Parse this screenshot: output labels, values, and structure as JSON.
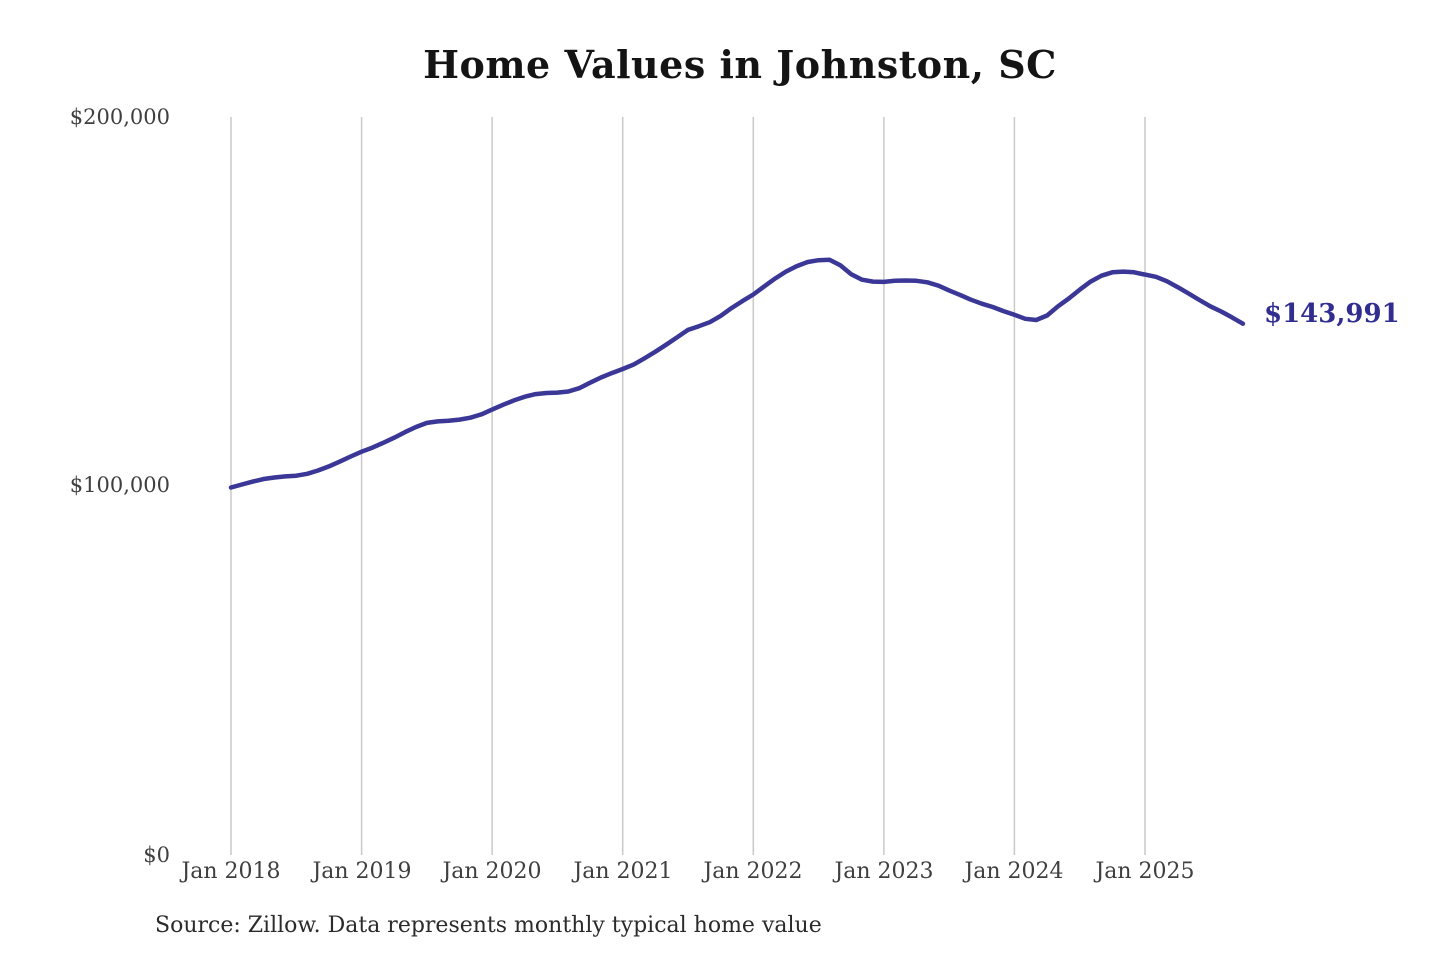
{
  "title": "Home Values in Johnston, SC",
  "source_note": "Source: Zillow. Data represents monthly typical home value",
  "end_value_label": "$143,991",
  "colors": {
    "background": "#ffffff",
    "line": "#3b3797",
    "end_label": "#312e90",
    "grid": "#c9c9c9",
    "axis_text": "#3f3f3f",
    "title_text": "#141414",
    "source_text": "#2b2b2b"
  },
  "y_axis": {
    "tick_labels": [
      "$200,000",
      "$100,000",
      "$0"
    ],
    "min": 0,
    "max": 200000
  },
  "x_axis": {
    "tick_labels": [
      "Jan 2018",
      "Jan 2019",
      "Jan 2020",
      "Jan 2021",
      "Jan 2022",
      "Jan 2023",
      "Jan 2024",
      "Jan 2025"
    ]
  },
  "chart_data": {
    "type": "line",
    "title": "Home Values in Johnston, SC",
    "frequency": "monthly",
    "x_start": "Jan 2018",
    "x_end": "Oct 2025",
    "ylim": [
      0,
      200000
    ],
    "y_tick_labels": [
      "$0",
      "$100,000",
      "$200,000"
    ],
    "x_tick_labels": [
      "Jan 2018",
      "Jan 2019",
      "Jan 2020",
      "Jan 2021",
      "Jan 2022",
      "Jan 2023",
      "Jan 2024",
      "Jan 2025"
    ],
    "grid": "vertical-only",
    "legend": "none",
    "annotation": "$143,991 at final point (Oct 2025)",
    "series": [
      {
        "name": "Monthly typical home value (USD)",
        "values": [
          99600,
          100400,
          101200,
          101900,
          102300,
          102600,
          102800,
          103300,
          104200,
          105300,
          106600,
          108000,
          109300,
          110400,
          111700,
          113100,
          114600,
          116000,
          117100,
          117500,
          117700,
          118000,
          118500,
          119400,
          120700,
          122000,
          123200,
          124200,
          124900,
          125200,
          125300,
          125600,
          126500,
          128000,
          129400,
          130600,
          131700,
          132900,
          134600,
          136400,
          138300,
          140300,
          142300,
          143300,
          144400,
          146100,
          148200,
          150100,
          151900,
          154100,
          156200,
          158100,
          159600,
          160700,
          161200,
          161300,
          159800,
          157400,
          155900,
          155400,
          155300,
          155600,
          155700,
          155600,
          155200,
          154300,
          153000,
          151800,
          150500,
          149400,
          148500,
          147400,
          146400,
          145300,
          145000,
          146200,
          148700,
          150800,
          153200,
          155400,
          157000,
          157900,
          158100,
          157900,
          157300,
          156700,
          155500,
          153900,
          152200,
          150400,
          148700,
          147300,
          145700,
          143991
        ]
      }
    ],
    "last_point": {
      "month": "Oct 2025",
      "value": 143991,
      "label": "$143,991"
    }
  }
}
